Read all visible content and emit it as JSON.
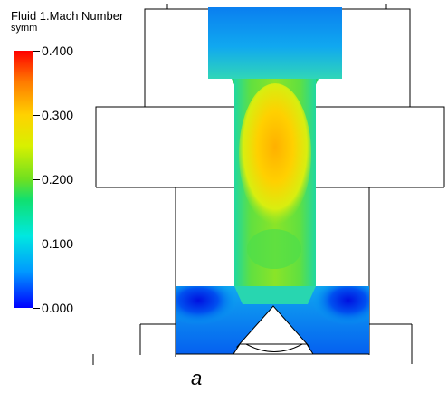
{
  "legend": {
    "title": "Fluid 1.Mach Number",
    "subtitle": "symm",
    "ticks": [
      "0.400",
      "0.300",
      "0.200",
      "0.100",
      "0.000"
    ],
    "range": [
      0.0,
      0.4
    ],
    "colormap": [
      "#0000ff",
      "#0098ff",
      "#00e8e0",
      "#10e070",
      "#6fe020",
      "#d8f000",
      "#ffd200",
      "#ff7a00",
      "#ff0000"
    ]
  },
  "caption": "a"
}
